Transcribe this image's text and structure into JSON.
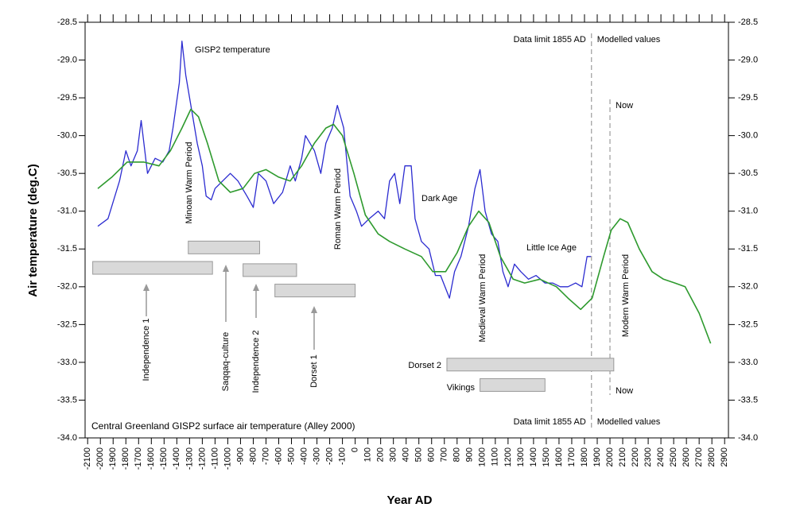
{
  "chart_data": {
    "type": "line",
    "title": "Central Greenland GISP2 surface air temperature (Alley 2000)",
    "x_label": "Year AD",
    "y_label": "Air temperature (deg.C)",
    "xlim": [
      -2120,
      2930
    ],
    "ylim": [
      -34.0,
      -28.5
    ],
    "xticks": [
      -2100,
      -2000,
      -1900,
      -1800,
      -1700,
      -1600,
      -1500,
      -1400,
      -1300,
      -1200,
      -1100,
      -1000,
      -900,
      -800,
      -700,
      -600,
      -500,
      -400,
      -300,
      -200,
      -100,
      0,
      100,
      200,
      300,
      400,
      500,
      600,
      700,
      800,
      900,
      1000,
      1100,
      1200,
      1300,
      1400,
      1500,
      1600,
      1700,
      1800,
      1900,
      2000,
      2100,
      2200,
      2300,
      2400,
      2500,
      2600,
      2700,
      2800,
      2900
    ],
    "yticks": [
      -28.5,
      {
        "value": -29,
        "label": "-29.0"
      },
      -29.5,
      {
        "value": -30,
        "label": "-30.0"
      },
      -30.5,
      {
        "value": -31,
        "label": "-31.0"
      },
      -31.5,
      {
        "value": -32,
        "label": "-32.0"
      },
      -32.5,
      {
        "value": -33,
        "label": "-33.0"
      },
      -33.5,
      {
        "value": -34,
        "label": "-34.0"
      }
    ],
    "series": [
      {
        "name": "GISP2 temperature",
        "color": "#2b2bd0",
        "x": [
          -2020,
          -1940,
          -1850,
          -1800,
          -1760,
          -1710,
          -1680,
          -1630,
          -1570,
          -1510,
          -1460,
          -1430,
          -1380,
          -1360,
          -1330,
          -1290,
          -1240,
          -1200,
          -1170,
          -1130,
          -1100,
          -1040,
          -980,
          -920,
          -850,
          -800,
          -760,
          -700,
          -640,
          -570,
          -510,
          -470,
          -420,
          -390,
          -320,
          -270,
          -230,
          -180,
          -140,
          -90,
          -40,
          10,
          50,
          110,
          180,
          230,
          270,
          310,
          350,
          390,
          440,
          470,
          520,
          580,
          630,
          670,
          740,
          780,
          830,
          890,
          940,
          980,
          1020,
          1070,
          1120,
          1160,
          1200,
          1250,
          1300,
          1360,
          1420,
          1490,
          1550,
          1610,
          1670,
          1730,
          1780,
          1820,
          1850
        ],
        "values": [
          -31.2,
          -31.1,
          -30.6,
          -30.2,
          -30.4,
          -30.2,
          -29.8,
          -30.5,
          -30.3,
          -30.35,
          -30.2,
          -29.9,
          -29.3,
          -28.75,
          -29.2,
          -29.6,
          -30.1,
          -30.4,
          -30.8,
          -30.85,
          -30.7,
          -30.6,
          -30.5,
          -30.6,
          -30.8,
          -30.95,
          -30.5,
          -30.6,
          -30.9,
          -30.75,
          -30.4,
          -30.6,
          -30.3,
          -30.0,
          -30.2,
          -30.5,
          -30.1,
          -29.9,
          -29.6,
          -29.9,
          -30.8,
          -31.0,
          -31.2,
          -31.1,
          -31.0,
          -31.1,
          -30.6,
          -30.5,
          -30.9,
          -30.4,
          -30.4,
          -31.1,
          -31.4,
          -31.5,
          -31.85,
          -31.85,
          -32.15,
          -31.8,
          -31.6,
          -31.2,
          -30.7,
          -30.45,
          -31.0,
          -31.3,
          -31.4,
          -31.8,
          -32.0,
          -31.7,
          -31.8,
          -31.9,
          -31.85,
          -31.95,
          -31.95,
          -32.0,
          -32.0,
          -31.95,
          -32.0,
          -31.6,
          -31.6
        ]
      },
      {
        "name": "Modelled values",
        "color": "#2e9a2e",
        "x": [
          -2020,
          -1910,
          -1790,
          -1660,
          -1540,
          -1450,
          -1360,
          -1290,
          -1230,
          -1160,
          -1070,
          -980,
          -880,
          -790,
          -700,
          -600,
          -510,
          -420,
          -320,
          -230,
          -170,
          -100,
          -10,
          80,
          180,
          270,
          390,
          520,
          610,
          710,
          800,
          890,
          970,
          1050,
          1140,
          1240,
          1330,
          1450,
          1580,
          1670,
          1770,
          1860,
          1950,
          2010,
          2080,
          2140,
          2230,
          2330,
          2420,
          2510,
          2590,
          2700,
          2790
        ],
        "values": [
          -30.7,
          -30.55,
          -30.35,
          -30.35,
          -30.4,
          -30.2,
          -29.9,
          -29.65,
          -29.75,
          -30.1,
          -30.6,
          -30.75,
          -30.7,
          -30.5,
          -30.45,
          -30.55,
          -30.6,
          -30.4,
          -30.1,
          -29.9,
          -29.85,
          -30.0,
          -30.5,
          -31.05,
          -31.3,
          -31.4,
          -31.5,
          -31.6,
          -31.8,
          -31.8,
          -31.55,
          -31.2,
          -31.0,
          -31.15,
          -31.6,
          -31.9,
          -31.95,
          -31.9,
          -32.0,
          -32.15,
          -32.3,
          -32.15,
          -31.6,
          -31.25,
          -31.1,
          -31.15,
          -31.5,
          -31.8,
          -31.9,
          -31.95,
          -32.0,
          -32.35,
          -32.75
        ]
      }
    ],
    "reference_lines": [
      {
        "x": 1855,
        "label": "Data limit 1855 AD",
        "color": "#2b2bd0",
        "note": "Modelled values",
        "note_color": "#2e9a2e"
      },
      {
        "x": 2000,
        "label": "Now",
        "color": "#000000"
      }
    ],
    "periods": [
      {
        "name": "Independence 1",
        "start": -2060,
        "end": -1120,
        "level": -31.75
      },
      {
        "name": "Saqqaq-culture",
        "start": -1310,
        "end": -750,
        "level": -31.48
      },
      {
        "name": "Independence 2",
        "start": -880,
        "end": -460,
        "level": -31.78
      },
      {
        "name": "Dorset 1",
        "start": -630,
        "end": 0,
        "level": -32.05
      },
      {
        "name": "Dorset 2",
        "start": 720,
        "end": 2030,
        "level": -33.03
      },
      {
        "name": "Vikings",
        "start": 980,
        "end": 1490,
        "level": -33.3
      }
    ],
    "annotations": [
      {
        "text": "GISP2 temperature",
        "color": "#2b2bd0"
      },
      {
        "text": "Dark Age",
        "color": "#2b2bd0"
      },
      {
        "text": "Little Ice Age",
        "color": "#2b2bd0"
      },
      {
        "text": "Minoan Warm Period",
        "color": "#e03030"
      },
      {
        "text": "Roman Warm Period",
        "color": "#e03030"
      },
      {
        "text": "Medieval Warm Period",
        "color": "#e03030"
      },
      {
        "text": "Modern Warm Period",
        "color": "#e03030"
      }
    ]
  }
}
